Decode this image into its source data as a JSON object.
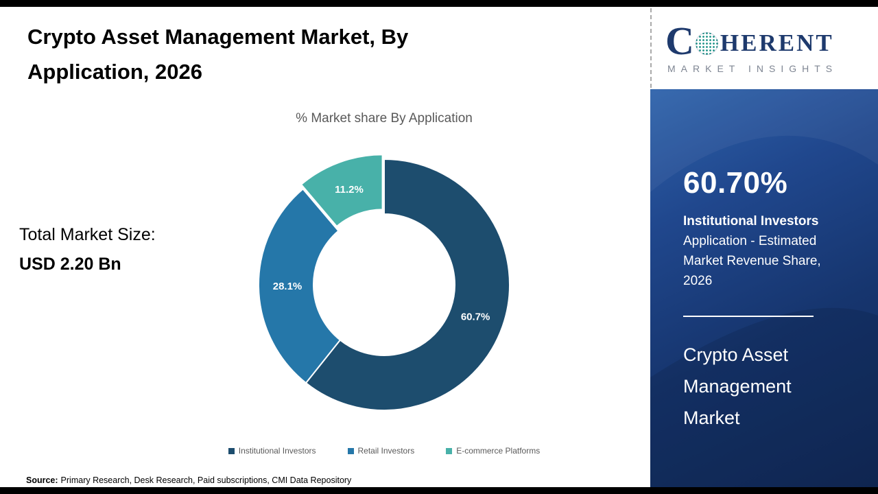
{
  "page": {
    "title": "Crypto Asset Management Market, By Application, 2026",
    "source_label": "Source:",
    "source_text": "Primary Research, Desk Research, Paid subscriptions, CMI Data Repository"
  },
  "total_market": {
    "label": "Total Market Size:",
    "value": "USD 2.20 Bn"
  },
  "chart_data": {
    "type": "pie",
    "donut": true,
    "title": "% Market share By Application",
    "categories": [
      "Institutional Investors",
      "Retail Investors",
      "E-commerce Platforms"
    ],
    "values": [
      60.7,
      28.1,
      11.2
    ],
    "labels": [
      "60.7%",
      "28.1%",
      "11.2%"
    ],
    "colors": [
      "#1d4d6e",
      "#2577a9",
      "#48b1a9"
    ],
    "explode": [
      0,
      0,
      7
    ],
    "start_angle": 0,
    "legend_position": "bottom"
  },
  "sidebar": {
    "stat_value": "60.70%",
    "stat_title": "Institutional Investors",
    "stat_desc": "Application - Estimated Market Revenue Share, 2026",
    "market_name": "Crypto Asset Management Market"
  },
  "logo": {
    "text_c": "C",
    "text_rest": "HERENT",
    "tagline": "MARKET INSIGHTS"
  }
}
